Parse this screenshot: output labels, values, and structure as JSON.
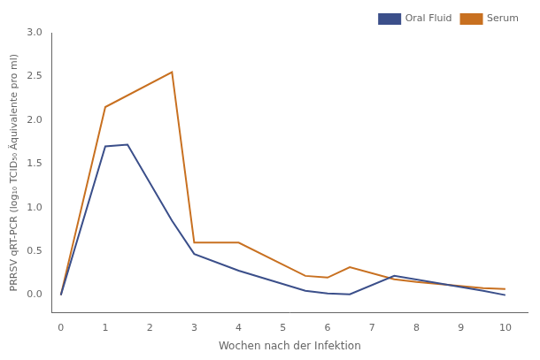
{
  "chart_data": {
    "type": "line",
    "x_label": "Wochen nach der Infektion",
    "y_label": "PRRSV qRT-PCR (log₁₀ TCID₅₀ Äquivalente pro ml)",
    "series": [
      {
        "name": "Oral Fluid",
        "color": "#3b4f8a",
        "x": [
          0,
          1,
          1.5,
          2.5,
          3,
          4,
          5.5,
          6,
          6.5,
          7.5,
          9.5,
          10
        ],
        "values": [
          0.0,
          1.7,
          1.72,
          0.85,
          0.47,
          0.28,
          0.05,
          0.02,
          0.01,
          0.22,
          0.05,
          0.0
        ]
      },
      {
        "name": "Serum",
        "color": "#c87020",
        "x": [
          0,
          1,
          2.5,
          3,
          4,
          5.5,
          6,
          6.5,
          7.5,
          8,
          9.5,
          10
        ],
        "values": [
          0.0,
          2.15,
          2.55,
          0.6,
          0.6,
          0.22,
          0.2,
          0.32,
          0.18,
          0.15,
          0.08,
          0.07
        ]
      }
    ],
    "xlim": [
      -0.2,
      10.5
    ],
    "xticks": [
      0,
      1,
      2,
      3,
      4,
      5,
      6,
      7,
      8,
      9,
      10
    ],
    "ylim": [
      -0.2,
      3.0
    ],
    "yticks": [
      {
        "value": 0.0,
        "label": "0.0"
      },
      0.5,
      {
        "value": 1.0,
        "label": "1.0"
      },
      1.5,
      {
        "value": 2.0,
        "label": "2.0"
      },
      2.5,
      {
        "value": 3.0,
        "label": "3.0"
      }
    ],
    "grid": false,
    "legend": "upper right"
  }
}
